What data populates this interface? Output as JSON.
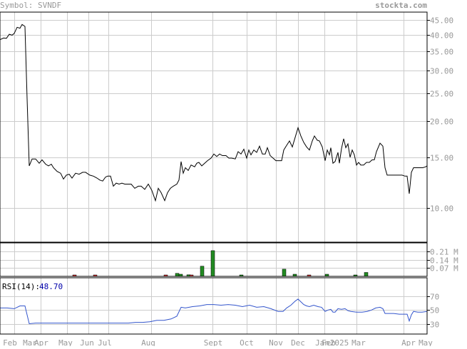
{
  "header": {
    "symbol_text": "Symbol: SVNDF",
    "brand_text": "stockta.com"
  },
  "colors": {
    "text_gray": "#999999",
    "grid": "#cccccc",
    "frame": "#000000",
    "price_line": "#000000",
    "volume_up": "#228B22",
    "volume_down": "#cc3333",
    "rsi_line": "#3355cc",
    "rsi_value": "#0000aa"
  },
  "chart_data": [
    {
      "type": "line",
      "panel": "price",
      "y_scale": "log",
      "ylim": [
        7.6,
        48
      ],
      "y_ticks": [
        {
          "value": 45,
          "label": "45.00"
        },
        {
          "value": 40,
          "label": "40.00"
        },
        {
          "value": 35,
          "label": "35.00"
        },
        {
          "value": 30,
          "label": "30.00"
        },
        {
          "value": 25,
          "label": "25.00"
        },
        {
          "value": 20,
          "label": "20.00"
        },
        {
          "value": 15,
          "label": "15.00"
        },
        {
          "value": 10,
          "label": "10.00"
        }
      ],
      "x_labels": [
        "Feb",
        "Mar",
        "Apr",
        "May",
        "Jun",
        "Jul",
        "Aug",
        "Sept",
        "Oct",
        "Nov",
        "Dec",
        "Jan",
        "Feb",
        "2025",
        "Mar",
        "Apr",
        "May"
      ],
      "series": [
        {
          "values": [
            [
              0,
              38.5
            ],
            [
              5,
              39.0
            ],
            [
              9,
              38.9
            ],
            [
              13,
              40.2
            ],
            [
              17,
              39.9
            ],
            [
              20,
              40.5
            ],
            [
              24,
              42.5
            ],
            [
              28,
              42.2
            ],
            [
              31,
              43.5
            ],
            [
              35,
              42.8
            ],
            [
              38,
              24.0
            ],
            [
              41,
              14.0
            ],
            [
              45,
              14.8
            ],
            [
              50,
              14.8
            ],
            [
              55,
              14.3
            ],
            [
              59,
              14.7
            ],
            [
              64,
              14.2
            ],
            [
              68,
              14.0
            ],
            [
              72,
              14.2
            ],
            [
              75,
              13.8
            ],
            [
              80,
              13.4
            ],
            [
              85,
              13.2
            ],
            [
              89,
              12.6
            ],
            [
              93,
              13.0
            ],
            [
              97,
              13.1
            ],
            [
              101,
              12.7
            ],
            [
              106,
              13.2
            ],
            [
              111,
              13.1
            ],
            [
              116,
              13.3
            ],
            [
              120,
              13.3
            ],
            [
              126,
              13.0
            ],
            [
              131,
              12.9
            ],
            [
              136,
              12.7
            ],
            [
              140,
              12.5
            ],
            [
              144,
              12.4
            ],
            [
              148,
              12.8
            ],
            [
              151,
              12.9
            ],
            [
              155,
              12.9
            ],
            [
              159,
              11.9
            ],
            [
              163,
              12.2
            ],
            [
              167,
              12.1
            ],
            [
              171,
              12.2
            ],
            [
              175,
              12.1
            ],
            [
              180,
              12.1
            ],
            [
              184,
              12.1
            ],
            [
              189,
              11.7
            ],
            [
              194,
              11.9
            ],
            [
              198,
              11.9
            ],
            [
              203,
              11.6
            ],
            [
              208,
              12.1
            ],
            [
              213,
              11.5
            ],
            [
              218,
              10.6
            ],
            [
              222,
              11.7
            ],
            [
              226,
              11.3
            ],
            [
              231,
              10.6
            ],
            [
              235,
              11.3
            ],
            [
              239,
              11.7
            ],
            [
              243,
              11.9
            ],
            [
              248,
              12.1
            ],
            [
              251,
              12.5
            ],
            [
              254,
              14.5
            ],
            [
              257,
              13.2
            ],
            [
              260,
              13.8
            ],
            [
              264,
              13.5
            ],
            [
              268,
              14.1
            ],
            [
              273,
              13.9
            ],
            [
              276,
              14.3
            ],
            [
              279,
              14.4
            ],
            [
              283,
              14.0
            ],
            [
              287,
              14.3
            ],
            [
              291,
              14.6
            ],
            [
              296,
              14.9
            ],
            [
              300,
              15.4
            ],
            [
              304,
              15.1
            ],
            [
              308,
              15.4
            ],
            [
              312,
              15.2
            ],
            [
              317,
              15.2
            ],
            [
              321,
              14.9
            ],
            [
              325,
              14.9
            ],
            [
              330,
              14.8
            ],
            [
              334,
              15.7
            ],
            [
              338,
              15.4
            ],
            [
              342,
              16.0
            ],
            [
              346,
              14.9
            ],
            [
              349,
              15.9
            ],
            [
              352,
              15.3
            ],
            [
              356,
              15.9
            ],
            [
              360,
              15.6
            ],
            [
              364,
              16.4
            ],
            [
              368,
              15.4
            ],
            [
              372,
              15.4
            ],
            [
              375,
              16.2
            ],
            [
              379,
              15.2
            ],
            [
              383,
              14.9
            ],
            [
              387,
              14.6
            ],
            [
              391,
              14.6
            ],
            [
              395,
              14.6
            ],
            [
              398,
              15.9
            ],
            [
              402,
              16.5
            ],
            [
              406,
              17.1
            ],
            [
              410,
              16.3
            ],
            [
              414,
              17.6
            ],
            [
              418,
              19.0
            ],
            [
              422,
              17.8
            ],
            [
              426,
              16.9
            ],
            [
              430,
              16.3
            ],
            [
              434,
              15.9
            ],
            [
              438,
              17.1
            ],
            [
              441,
              17.8
            ],
            [
              445,
              17.2
            ],
            [
              448,
              17.1
            ],
            [
              452,
              16.3
            ],
            [
              456,
              14.6
            ],
            [
              459,
              15.9
            ],
            [
              462,
              15.3
            ],
            [
              464,
              16.2
            ],
            [
              467,
              14.3
            ],
            [
              470,
              14.5
            ],
            [
              474,
              15.6
            ],
            [
              476,
              14.3
            ],
            [
              479,
              16.1
            ],
            [
              482,
              17.4
            ],
            [
              485,
              16.2
            ],
            [
              488,
              16.7
            ],
            [
              491,
              15.0
            ],
            [
              494,
              15.9
            ],
            [
              497,
              15.3
            ],
            [
              500,
              14.1
            ],
            [
              503,
              14.4
            ],
            [
              506,
              14.1
            ],
            [
              510,
              14.1
            ],
            [
              514,
              14.4
            ],
            [
              518,
              14.4
            ],
            [
              522,
              14.7
            ],
            [
              525,
              14.7
            ],
            [
              528,
              15.7
            ],
            [
              533,
              16.8
            ],
            [
              537,
              16.4
            ],
            [
              540,
              13.8
            ],
            [
              543,
              13.0
            ],
            [
              548,
              13.0
            ],
            [
              554,
              13.0
            ],
            [
              559,
              13.0
            ],
            [
              564,
              13.0
            ],
            [
              568,
              12.9
            ],
            [
              571,
              12.9
            ],
            [
              574,
              11.2
            ],
            [
              577,
              13.3
            ],
            [
              580,
              13.8
            ],
            [
              585,
              13.8
            ],
            [
              590,
              13.8
            ],
            [
              593,
              13.8
            ],
            [
              597,
              13.9
            ],
            [
              599,
              14.0
            ]
          ]
        }
      ]
    },
    {
      "type": "bar",
      "panel": "volume",
      "ylim": [
        0,
        0.28
      ],
      "y_ticks": [
        {
          "value": 0.21,
          "label": "0.21 M"
        },
        {
          "value": 0.14,
          "label": "0.14 M"
        },
        {
          "value": 0.07,
          "label": "0.07 M"
        }
      ],
      "series": [
        {
          "values": [
            {
              "x": 104,
              "v": 0.007,
              "dir": "down"
            },
            {
              "x": 133,
              "v": 0.005,
              "dir": "down"
            },
            {
              "x": 232,
              "v": 0.005,
              "dir": "down"
            },
            {
              "x": 248,
              "v": 0.025,
              "dir": "up"
            },
            {
              "x": 253,
              "v": 0.018,
              "dir": "up"
            },
            {
              "x": 264,
              "v": 0.013,
              "dir": "up"
            },
            {
              "x": 268,
              "v": 0.008,
              "dir": "down"
            },
            {
              "x": 283,
              "v": 0.085,
              "dir": "up"
            },
            {
              "x": 298,
              "v": 0.215,
              "dir": "up"
            },
            {
              "x": 338,
              "v": 0.01,
              "dir": "up"
            },
            {
              "x": 398,
              "v": 0.06,
              "dir": "up"
            },
            {
              "x": 413,
              "v": 0.018,
              "dir": "up"
            },
            {
              "x": 433,
              "v": 0.006,
              "dir": "down"
            },
            {
              "x": 458,
              "v": 0.018,
              "dir": "up"
            },
            {
              "x": 498,
              "v": 0.01,
              "dir": "up"
            },
            {
              "x": 513,
              "v": 0.033,
              "dir": "up"
            }
          ]
        }
      ]
    },
    {
      "type": "line",
      "panel": "rsi",
      "label": "RSI(14):",
      "value_text": "48.70",
      "ylim": [
        15,
        97
      ],
      "y_ticks": [
        {
          "value": 70,
          "label": "70"
        },
        {
          "value": 50,
          "label": "50"
        },
        {
          "value": 30,
          "label": "30"
        }
      ],
      "series": [
        {
          "values": [
            [
              0,
              53
            ],
            [
              10,
              53
            ],
            [
              20,
              52
            ],
            [
              28,
              56
            ],
            [
              35,
              56
            ],
            [
              38,
              43
            ],
            [
              41,
              30
            ],
            [
              50,
              31
            ],
            [
              60,
              31
            ],
            [
              70,
              31
            ],
            [
              80,
              31
            ],
            [
              90,
              31
            ],
            [
              100,
              31
            ],
            [
              110,
              31
            ],
            [
              120,
              31
            ],
            [
              130,
              31
            ],
            [
              140,
              31
            ],
            [
              150,
              31
            ],
            [
              160,
              31
            ],
            [
              170,
              31
            ],
            [
              180,
              31
            ],
            [
              190,
              32
            ],
            [
              200,
              32
            ],
            [
              210,
              33
            ],
            [
              220,
              35
            ],
            [
              230,
              35
            ],
            [
              240,
              37
            ],
            [
              248,
              41
            ],
            [
              254,
              54
            ],
            [
              260,
              53
            ],
            [
              270,
              55
            ],
            [
              280,
              56
            ],
            [
              290,
              58
            ],
            [
              300,
              58
            ],
            [
              310,
              57
            ],
            [
              320,
              58
            ],
            [
              330,
              57
            ],
            [
              340,
              55
            ],
            [
              350,
              57
            ],
            [
              360,
              54
            ],
            [
              370,
              55
            ],
            [
              380,
              52
            ],
            [
              390,
              48
            ],
            [
              397,
              48
            ],
            [
              402,
              53
            ],
            [
              408,
              57
            ],
            [
              414,
              63
            ],
            [
              418,
              66
            ],
            [
              422,
              62
            ],
            [
              426,
              58
            ],
            [
              430,
              56
            ],
            [
              434,
              55
            ],
            [
              440,
              57
            ],
            [
              446,
              55
            ],
            [
              451,
              54
            ],
            [
              456,
              48
            ],
            [
              460,
              50
            ],
            [
              464,
              51
            ],
            [
              467,
              47
            ],
            [
              470,
              47
            ],
            [
              474,
              52
            ],
            [
              479,
              51
            ],
            [
              484,
              52
            ],
            [
              488,
              49
            ],
            [
              492,
              48
            ],
            [
              500,
              47
            ],
            [
              508,
              47
            ],
            [
              515,
              48
            ],
            [
              521,
              50
            ],
            [
              527,
              53
            ],
            [
              533,
              54
            ],
            [
              537,
              52
            ],
            [
              540,
              45
            ],
            [
              545,
              45
            ],
            [
              552,
              45
            ],
            [
              560,
              44
            ],
            [
              566,
              44
            ],
            [
              571,
              44
            ],
            [
              574,
              34
            ],
            [
              577,
              43
            ],
            [
              580,
              48
            ],
            [
              586,
              47
            ],
            [
              592,
              47
            ],
            [
              599,
              48
            ]
          ]
        }
      ]
    }
  ]
}
